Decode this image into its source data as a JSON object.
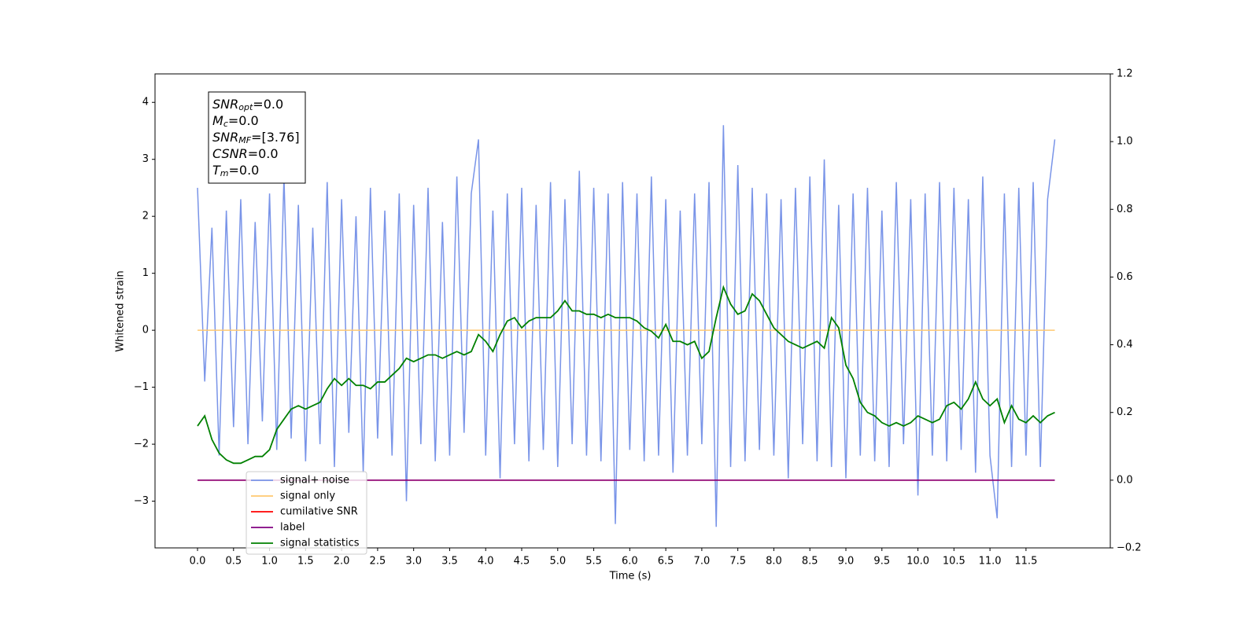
{
  "chart_data": {
    "type": "line",
    "xlabel": "Time (s)",
    "ylabel": "Whitened strain",
    "x": [
      0,
      0.1,
      0.2,
      0.3,
      0.4,
      0.5,
      0.6,
      0.7,
      0.8,
      0.9,
      1,
      1.1,
      1.2,
      1.3,
      1.4,
      1.5,
      1.6,
      1.7,
      1.8,
      1.9,
      2,
      2.1,
      2.2,
      2.3,
      2.4,
      2.5,
      2.6,
      2.7,
      2.8,
      2.9,
      3,
      3.1,
      3.2,
      3.3,
      3.4,
      3.5,
      3.6,
      3.7,
      3.8,
      3.9,
      4,
      4.1,
      4.2,
      4.3,
      4.4,
      4.5,
      4.6,
      4.7,
      4.8,
      4.9,
      5,
      5.1,
      5.2,
      5.3,
      5.4,
      5.5,
      5.6,
      5.7,
      5.8,
      5.9,
      6,
      6.1,
      6.2,
      6.3,
      6.4,
      6.5,
      6.6,
      6.7,
      6.8,
      6.9,
      7,
      7.1,
      7.2,
      7.3,
      7.4,
      7.5,
      7.6,
      7.7,
      7.8,
      7.9,
      8,
      8.1,
      8.2,
      8.3,
      8.4,
      8.5,
      8.6,
      8.7,
      8.8,
      8.9,
      9,
      9.1,
      9.2,
      9.3,
      9.4,
      9.5,
      9.6,
      9.7,
      9.8,
      9.9,
      10,
      10.1,
      10.2,
      10.3,
      10.4,
      10.5,
      10.6,
      10.7,
      10.8,
      10.9,
      11,
      11.1,
      11.2,
      11.3,
      11.4,
      11.5,
      11.6,
      11.7,
      11.8,
      11.9
    ],
    "series": [
      {
        "name": "signal+ noise",
        "color": "#7994e8",
        "axis": "y",
        "values": [
          2.5,
          -0.9,
          1.8,
          -2.2,
          2.1,
          -1.7,
          2.3,
          -2.0,
          1.9,
          -1.6,
          2.4,
          -2.1,
          2.7,
          -1.9,
          2.2,
          -2.3,
          1.8,
          -2.0,
          2.6,
          -2.4,
          2.3,
          -1.8,
          2.0,
          -2.5,
          2.5,
          -1.9,
          2.1,
          -2.2,
          2.4,
          -3.0,
          2.2,
          -2.0,
          2.5,
          -2.3,
          1.9,
          -2.2,
          2.7,
          -1.8,
          2.4,
          3.35,
          -2.2,
          2.1,
          -2.6,
          2.4,
          -2.0,
          2.5,
          -2.3,
          2.2,
          -2.1,
          2.6,
          -2.4,
          2.3,
          -2.0,
          2.8,
          -2.2,
          2.5,
          -2.3,
          2.4,
          -3.4,
          2.6,
          -2.1,
          2.4,
          -2.3,
          2.7,
          -2.2,
          2.3,
          -2.5,
          2.1,
          -2.2,
          2.4,
          -2.0,
          2.6,
          -3.45,
          3.6,
          -2.4,
          2.9,
          -2.3,
          2.5,
          -2.1,
          2.4,
          -2.2,
          2.3,
          -2.6,
          2.5,
          -2.0,
          2.7,
          -2.3,
          3.0,
          -2.4,
          2.2,
          -2.6,
          2.4,
          -2.2,
          2.5,
          -2.3,
          2.1,
          -2.4,
          2.6,
          -2.0,
          2.3,
          -2.9,
          2.4,
          -2.2,
          2.6,
          -2.3,
          2.5,
          -2.1,
          2.3,
          -2.5,
          2.7,
          -2.2,
          -3.3,
          2.4,
          -2.4,
          2.5,
          -2.2,
          2.6,
          -2.4,
          2.3,
          3.35
        ]
      },
      {
        "name": "signal only",
        "color": "#ffc870",
        "axis": "y",
        "x": [
          0,
          11.9
        ],
        "values": [
          0,
          0
        ]
      },
      {
        "name": "cumilative SNR",
        "color": "#ff0000",
        "axis": "y2",
        "x": [
          0,
          11.9
        ],
        "values": [
          0,
          0
        ]
      },
      {
        "name": "label",
        "color": "#800080",
        "axis": "y2",
        "x": [
          0,
          11.9
        ],
        "values": [
          0,
          0
        ]
      },
      {
        "name": "signal statistics",
        "color": "#008000",
        "axis": "y2",
        "values": [
          0.16,
          0.19,
          0.12,
          0.08,
          0.06,
          0.05,
          0.05,
          0.06,
          0.07,
          0.07,
          0.09,
          0.15,
          0.18,
          0.21,
          0.22,
          0.21,
          0.22,
          0.23,
          0.27,
          0.3,
          0.28,
          0.3,
          0.28,
          0.28,
          0.27,
          0.29,
          0.29,
          0.31,
          0.33,
          0.36,
          0.35,
          0.36,
          0.37,
          0.37,
          0.36,
          0.37,
          0.38,
          0.37,
          0.38,
          0.43,
          0.41,
          0.38,
          0.43,
          0.47,
          0.48,
          0.45,
          0.47,
          0.48,
          0.48,
          0.48,
          0.5,
          0.53,
          0.5,
          0.5,
          0.49,
          0.49,
          0.48,
          0.49,
          0.48,
          0.48,
          0.48,
          0.47,
          0.45,
          0.44,
          0.42,
          0.46,
          0.41,
          0.41,
          0.4,
          0.41,
          0.36,
          0.38,
          0.48,
          0.57,
          0.52,
          0.49,
          0.5,
          0.55,
          0.53,
          0.49,
          0.45,
          0.43,
          0.41,
          0.4,
          0.39,
          0.4,
          0.41,
          0.39,
          0.48,
          0.45,
          0.34,
          0.3,
          0.23,
          0.2,
          0.19,
          0.17,
          0.16,
          0.17,
          0.16,
          0.17,
          0.19,
          0.18,
          0.17,
          0.18,
          0.22,
          0.23,
          0.21,
          0.24,
          0.29,
          0.24,
          0.22,
          0.24,
          0.17,
          0.22,
          0.18,
          0.17,
          0.19,
          0.17,
          0.19,
          0.2
        ]
      }
    ],
    "xlim": [
      -0.59,
      12.67
    ],
    "xticks": [
      {
        "value": 0,
        "label": "0.0"
      },
      0.5,
      {
        "value": 1,
        "label": "1.0"
      },
      1.5,
      {
        "value": 2,
        "label": "2.0"
      },
      2.5,
      {
        "value": 3,
        "label": "3.0"
      },
      3.5,
      {
        "value": 4,
        "label": "4.0"
      },
      4.5,
      {
        "value": 5,
        "label": "5.0"
      },
      5.5,
      {
        "value": 6,
        "label": "6.0"
      },
      6.5,
      {
        "value": 7,
        "label": "7.0"
      },
      7.5,
      {
        "value": 8,
        "label": "8.0"
      },
      8.5,
      {
        "value": 9,
        "label": "9.0"
      },
      9.5,
      {
        "value": 10,
        "label": "10.0"
      },
      10.5,
      {
        "value": 11,
        "label": "11.0"
      },
      11.5
    ],
    "ylim": [
      -3.82,
      4.5
    ],
    "yticks": [
      {
        "value": -3,
        "label": "−3"
      },
      {
        "value": -2,
        "label": "−2"
      },
      {
        "value": -1,
        "label": "−1"
      },
      0,
      1,
      2,
      3,
      4
    ],
    "y2lim": [
      -0.2,
      1.2
    ],
    "y2ticks": [
      {
        "value": -0.2,
        "label": "−0.2"
      },
      {
        "value": 0,
        "label": "0.0"
      },
      0.2,
      0.4,
      0.6,
      0.8,
      {
        "value": 1,
        "label": "1.0"
      },
      1.2
    ],
    "legend": "lower left",
    "annotations": [
      {
        "text": "SNR",
        "sub": "opt",
        "value": "=0.0"
      },
      {
        "text": "M",
        "sub": "c",
        "value": "=0.0"
      },
      {
        "text": "SNR",
        "sub": "MF",
        "value": "=[3.76]"
      },
      {
        "text": "CSNR",
        "value": "=0.0"
      },
      {
        "text": "T",
        "sub": "m",
        "value": "=0.0"
      }
    ]
  }
}
